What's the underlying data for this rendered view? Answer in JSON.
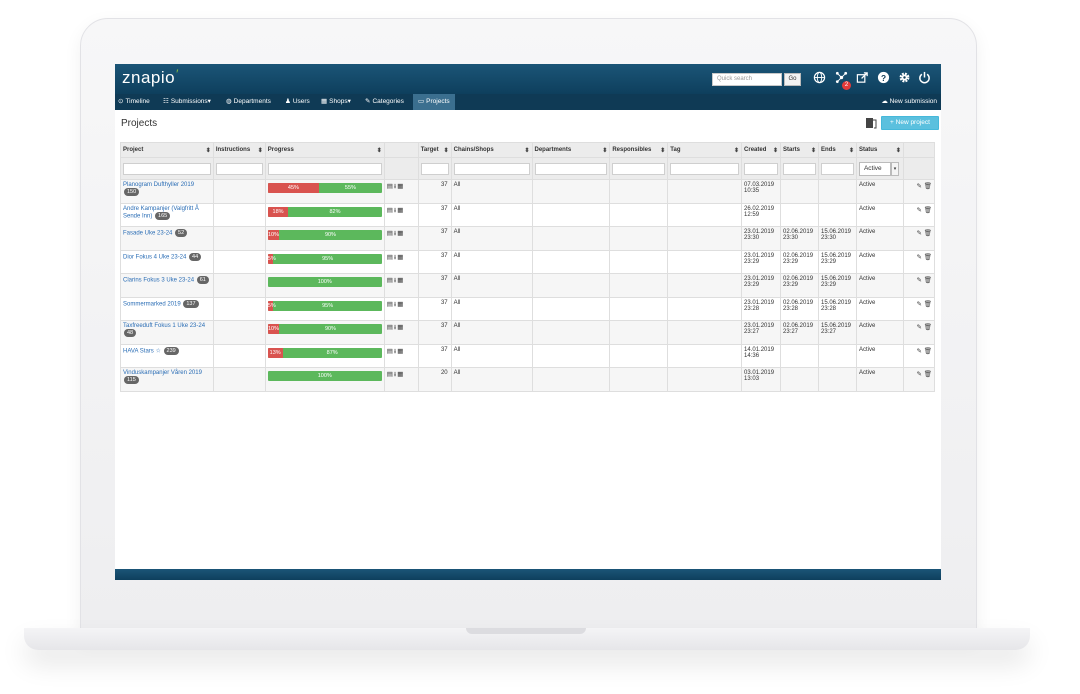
{
  "app": {
    "logo": "znapio",
    "logo_tick": "′"
  },
  "search": {
    "placeholder": "Quick search",
    "go": "Go"
  },
  "header_icons": [
    "globe-icon",
    "network-icon",
    "share-icon",
    "help-icon",
    "gear-icon",
    "power-icon"
  ],
  "notification_count": "2",
  "nav": {
    "items": [
      {
        "icon": "⊙",
        "label": "Timeline"
      },
      {
        "icon": "☷",
        "label": "Submissions▾"
      },
      {
        "icon": "◍",
        "label": "Departments"
      },
      {
        "icon": "♟",
        "label": "Users"
      },
      {
        "icon": "▦",
        "label": "Shops▾"
      },
      {
        "icon": "✎",
        "label": "Categories"
      },
      {
        "icon": "▭",
        "label": "Projects"
      }
    ],
    "new_submission": "New submission"
  },
  "page": {
    "title": "Projects",
    "new_project": "+ New project"
  },
  "table": {
    "columns": [
      "Project",
      "Instructions",
      "Progress",
      "",
      "Target",
      "Chains/Shops",
      "Departments",
      "Responsibles",
      "Tag",
      "Created",
      "Starts",
      "Ends",
      "Status",
      ""
    ],
    "status_filter": "Active",
    "rows": [
      {
        "name": "Planogram Dufthyller 2019",
        "count": "150",
        "red_pct": 45,
        "red_label": "45%",
        "green_label": "55%",
        "target": "37",
        "chains": "All",
        "created": "07.03.2019 10:35",
        "starts": "",
        "ends": "",
        "status": "Active"
      },
      {
        "name": "Andre Kampanjer (Valgfritt Å Sende Inn)",
        "count": "165",
        "red_pct": 18,
        "red_label": "18%",
        "green_label": "82%",
        "target": "37",
        "chains": "All",
        "created": "26.02.2019 12:59",
        "starts": "",
        "ends": "",
        "status": "Active"
      },
      {
        "name": "Fasade Uke 23-24",
        "count": "52",
        "red_pct": 10,
        "red_label": "10%",
        "green_label": "90%",
        "target": "37",
        "chains": "All",
        "created": "23.01.2019 23:30",
        "starts": "02.06.2019 23:30",
        "ends": "15.06.2019 23:30",
        "status": "Active"
      },
      {
        "name": "Dior Fokus 4 Uke 23-24",
        "count": "44",
        "red_pct": 5,
        "red_label": "5%",
        "green_label": "95%",
        "target": "37",
        "chains": "All",
        "created": "23.01.2019 23:29",
        "starts": "02.06.2019 23:29",
        "ends": "15.06.2019 23:29",
        "status": "Active"
      },
      {
        "name": "Clarins Fokus 3 Uke 23-24",
        "count": "61",
        "red_pct": 0,
        "red_label": "",
        "green_label": "100%",
        "target": "37",
        "chains": "All",
        "created": "23.01.2019 23:29",
        "starts": "02.06.2019 23:29",
        "ends": "15.06.2019 23:29",
        "status": "Active"
      },
      {
        "name": "Sommermarked 2019",
        "count": "137",
        "red_pct": 5,
        "red_label": "5%",
        "green_label": "95%",
        "target": "37",
        "chains": "All",
        "created": "23.01.2019 23:28",
        "starts": "02.06.2019 23:28",
        "ends": "15.06.2019 23:28",
        "status": "Active"
      },
      {
        "name": "Taxfreeduft Fokus 1 Uke 23-24",
        "count": "48",
        "red_pct": 10,
        "red_label": "10%",
        "green_label": "90%",
        "target": "37",
        "chains": "All",
        "created": "23.01.2019 23:27",
        "starts": "02.06.2019 23:27",
        "ends": "15.06.2019 23:27",
        "status": "Active"
      },
      {
        "name": "HAVA Stars ☆",
        "count": "239",
        "red_pct": 13,
        "red_label": "13%",
        "green_label": "87%",
        "target": "37",
        "chains": "All",
        "created": "14.01.2019 14:36",
        "starts": "",
        "ends": "",
        "status": "Active"
      },
      {
        "name": "Vinduskampanjer Våren 2019",
        "count": "115",
        "red_pct": 0,
        "red_label": "",
        "green_label": "100%",
        "target": "20",
        "chains": "All",
        "created": "03.01.2019 13:03",
        "starts": "",
        "ends": "",
        "status": "Active"
      }
    ]
  }
}
